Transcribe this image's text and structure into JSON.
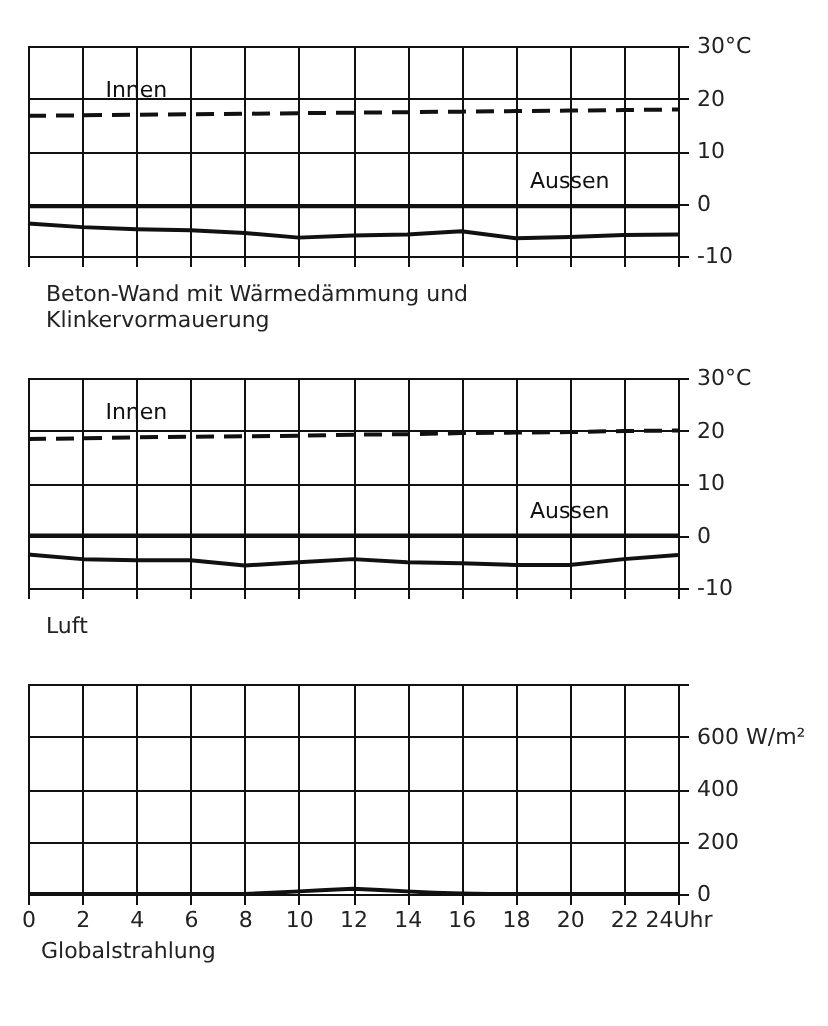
{
  "chart_data": [
    {
      "type": "line",
      "title": "Beton-Wand mit Wärmedämmung und Klinkervormauerung",
      "x": [
        0,
        2,
        4,
        6,
        8,
        10,
        12,
        14,
        16,
        18,
        20,
        22,
        24
      ],
      "xlim": [
        0,
        24
      ],
      "xticks": [
        0,
        2,
        4,
        6,
        8,
        10,
        12,
        14,
        16,
        18,
        20,
        22,
        24
      ],
      "ylim": [
        -10,
        30
      ],
      "yticks": [
        -10,
        0,
        10,
        20,
        {
          "value": 30,
          "label": "30°C"
        }
      ],
      "grid": true,
      "tick_labels": "y",
      "series": [
        {
          "name": "Innen",
          "color": "#111111",
          "line_style": "dashed",
          "values": [
            16.7,
            16.8,
            16.9,
            17.0,
            17.1,
            17.2,
            17.3,
            17.4,
            17.5,
            17.6,
            17.7,
            17.8,
            17.9
          ]
        },
        {
          "name": "Aussen",
          "color": "#111111",
          "line_style": "solid",
          "values": [
            -0.5,
            -0.5,
            -0.5,
            -0.5,
            -0.5,
            -0.5,
            -0.5,
            -0.5,
            -0.5,
            -0.5,
            -0.5,
            -0.5,
            -0.5
          ]
        },
        {
          "color": "#111111",
          "line_style": "solid",
          "values": [
            -3.8,
            -4.5,
            -4.9,
            -5.1,
            -5.6,
            -6.5,
            -6.1,
            -5.9,
            -5.3,
            -6.6,
            -6.4,
            -6.0,
            -5.9
          ]
        }
      ]
    },
    {
      "type": "line",
      "title": "Luft",
      "x": [
        0,
        2,
        4,
        6,
        8,
        10,
        12,
        14,
        16,
        18,
        20,
        22,
        24
      ],
      "xlim": [
        0,
        24
      ],
      "xticks": [
        0,
        2,
        4,
        6,
        8,
        10,
        12,
        14,
        16,
        18,
        20,
        22,
        24
      ],
      "ylim": [
        -10,
        30
      ],
      "yticks": [
        -10,
        0,
        10,
        20,
        {
          "value": 30,
          "label": "30°C"
        }
      ],
      "grid": true,
      "tick_labels": "y",
      "series": [
        {
          "name": "Innen",
          "color": "#111111",
          "line_style": "dashed",
          "values": [
            18.4,
            18.5,
            18.7,
            18.8,
            18.9,
            19.0,
            19.2,
            19.3,
            19.5,
            19.6,
            19.7,
            19.9,
            20.0
          ]
        },
        {
          "name": "Aussen",
          "color": "#111111",
          "line_style": "solid",
          "values": [
            0,
            0,
            0,
            0,
            0,
            0,
            0,
            0,
            0,
            0,
            0,
            0,
            0
          ]
        },
        {
          "color": "#111111",
          "line_style": "solid",
          "values": [
            -3.6,
            -4.5,
            -4.7,
            -4.7,
            -5.7,
            -5.1,
            -4.5,
            -5.1,
            -5.3,
            -5.6,
            -5.6,
            -4.5,
            -3.7
          ]
        }
      ]
    },
    {
      "type": "line",
      "title": "Globalstrahlung",
      "x": [
        0,
        8,
        9,
        10,
        11,
        12,
        13,
        14,
        15,
        16,
        17,
        24
      ],
      "xlim": [
        0,
        24
      ],
      "xticks": [
        0,
        2,
        4,
        6,
        8,
        10,
        12,
        14,
        16,
        18,
        20,
        22,
        {
          "value": 24,
          "label": "24Uhr"
        }
      ],
      "ylim": [
        0,
        800
      ],
      "yticks": [
        0,
        200,
        400,
        {
          "value": 600,
          "label": "600 W/m²"
        },
        {
          "value": 800,
          "label": null
        }
      ],
      "grid": true,
      "series": [
        {
          "color": "#111111",
          "line_style": "solid",
          "values": [
            0,
            0,
            5,
            10,
            15,
            20,
            15,
            10,
            5,
            2,
            0,
            0
          ]
        }
      ]
    }
  ]
}
